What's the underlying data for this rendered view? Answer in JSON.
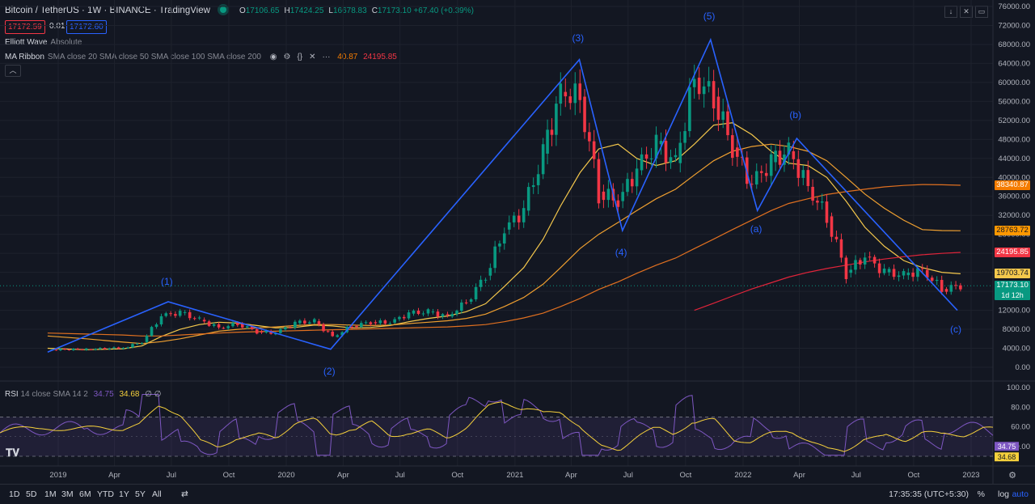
{
  "header": {
    "symbol_title": "Bitcoin / TetherUS · 1W · BINANCE · TradingView",
    "ohlc": {
      "o_label": "O",
      "o": "17106.65",
      "h_label": "H",
      "h": "17424.25",
      "l_label": "L",
      "l": "16678.83",
      "c_label": "C",
      "c": "17173.10",
      "change": "+67.40 (+0.39%)"
    },
    "bid": "17172.59",
    "spread": "0.01",
    "ask": "17172.60",
    "indicator_1": {
      "name": "Elliott Wave",
      "params": "Absolute"
    },
    "indicator_2": {
      "name": "MA Ribbon",
      "params": "SMA close 20 SMA close 50 SMA close 100 SMA close 200",
      "v1": "40.87",
      "v2": "24195.85"
    },
    "more_icon": "···",
    "collapse_icon": "chevron-up-icon",
    "window_icons": [
      "down-arrow-icon",
      "collapse-icon",
      "maximize-icon"
    ]
  },
  "rsi": {
    "name": "RSI",
    "params": "14 close SMA 14 2",
    "v1": "34.75",
    "v2": "34.68",
    "v3": "∅ ∅"
  },
  "bottom": {
    "timeframes": [
      "1D",
      "5D",
      "1M",
      "3M",
      "6M",
      "YTD",
      "1Y",
      "5Y",
      "All"
    ],
    "time": "17:35:35 (UTC+5:30)",
    "percent": "%",
    "log": "log",
    "auto": "auto"
  },
  "colors": {
    "bg": "#131722",
    "up": "#089981",
    "down": "#f23645",
    "wave": "#2962ff",
    "ma20": "#f5c84c",
    "ma50": "#f0a030",
    "ma100": "#e07020",
    "ma200": "#e0243a",
    "rsi": "#7e57c2",
    "rsi_ma": "#f5d03c"
  },
  "chart_data": {
    "type": "line",
    "title": "Bitcoin / TetherUS · 1W · BINANCE",
    "y_ticks": [
      "76000.00",
      "72000.00",
      "68000.00",
      "64000.00",
      "60000.00",
      "56000.00",
      "52000.00",
      "48000.00",
      "44000.00",
      "40000.00",
      "36000.00",
      "32000.00",
      "28000.00",
      "24000.00",
      "20000.00",
      "16000.00",
      "12000.00",
      "8000.00",
      "4000.00",
      "0.00"
    ],
    "ylim": [
      0,
      76000
    ],
    "x_ticks": [
      "2019",
      "Apr",
      "Jul",
      "Oct",
      "2020",
      "Apr",
      "Jul",
      "Oct",
      "2021",
      "Apr",
      "Jul",
      "Oct",
      "2022",
      "Apr",
      "Jul",
      "Oct",
      "2023"
    ],
    "price_tags": [
      {
        "label": "38340.87",
        "value": 38340.87,
        "color": "#f57c00"
      },
      {
        "label": "28763.72",
        "value": 28763.72,
        "color": "#ff9800"
      },
      {
        "label": "24195.85",
        "value": 24195.85,
        "color": "#f23645"
      },
      {
        "label": "19703.74",
        "value": 19703.74,
        "color": "#f5c84c"
      },
      {
        "label": "17173.10",
        "sub": "1d 12h",
        "value": 17173.1,
        "color": "#089981"
      }
    ],
    "elliott_wave": {
      "points": [
        {
          "label": "",
          "x": "2018-12-15",
          "y": 3200
        },
        {
          "label": "(1)",
          "x": "2019-06-26",
          "y": 13800
        },
        {
          "label": "(2)",
          "x": "2020-03-12",
          "y": 3800
        },
        {
          "label": "(3)",
          "x": "2021-04-14",
          "y": 64800
        },
        {
          "label": "(4)",
          "x": "2021-06-22",
          "y": 28800
        },
        {
          "label": "(5)",
          "x": "2021-11-10",
          "y": 69000
        },
        {
          "label": "(a)",
          "x": "2022-01-24",
          "y": 33000
        },
        {
          "label": "(b)",
          "x": "2022-03-28",
          "y": 48200
        },
        {
          "label": "(c)",
          "x": "2022-12-10",
          "y": 12000
        }
      ]
    },
    "series": [
      {
        "name": "BTCUSDT close",
        "x": [
          "2018-12",
          "2019-02",
          "2019-04",
          "2019-05",
          "2019-06",
          "2019-07",
          "2019-08",
          "2019-09",
          "2019-10",
          "2019-11",
          "2019-12",
          "2020-01",
          "2020-02",
          "2020-03",
          "2020-04",
          "2020-05",
          "2020-06",
          "2020-07",
          "2020-08",
          "2020-09",
          "2020-10",
          "2020-11",
          "2020-12",
          "2021-01",
          "2021-02",
          "2021-03",
          "2021-04",
          "2021-05",
          "2021-06",
          "2021-07",
          "2021-08",
          "2021-09",
          "2021-10",
          "2021-11",
          "2021-12",
          "2022-01",
          "2022-02",
          "2022-03",
          "2022-04",
          "2022-05",
          "2022-06",
          "2022-07",
          "2022-08",
          "2022-09",
          "2022-10",
          "2022-11",
          "2022-12"
        ],
        "values": [
          3700,
          3800,
          4100,
          5300,
          10800,
          11500,
          10000,
          8300,
          9200,
          7500,
          7200,
          9300,
          9700,
          6400,
          8700,
          9500,
          9400,
          11300,
          11700,
          10700,
          13800,
          19300,
          29000,
          33000,
          45000,
          58000,
          57000,
          37000,
          35000,
          41500,
          47000,
          43000,
          61000,
          57000,
          46300,
          38500,
          43200,
          45500,
          38000,
          31800,
          19900,
          23300,
          20000,
          19400,
          20500,
          16500,
          17173
        ]
      },
      {
        "name": "SMA 20",
        "values": [
          4000,
          3700,
          3900,
          4500,
          6500,
          8000,
          9000,
          9500,
          9300,
          8800,
          8300,
          8400,
          8900,
          8700,
          8300,
          8400,
          8800,
          9600,
          10300,
          10800,
          11700,
          13400,
          17000,
          21000,
          27000,
          34000,
          41000,
          46000,
          47000,
          44000,
          42500,
          43500,
          47000,
          51000,
          51500,
          49000,
          45500,
          43000,
          42500,
          40000,
          35000,
          29500,
          25500,
          22500,
          21000,
          20000,
          19704
        ]
      },
      {
        "name": "SMA 50",
        "values": [
          6600,
          6000,
          5300,
          5000,
          5400,
          6000,
          6800,
          7600,
          8000,
          8300,
          8500,
          8800,
          9000,
          9000,
          8900,
          8800,
          8900,
          9200,
          9500,
          9800,
          10300,
          11200,
          12800,
          14700,
          17500,
          21000,
          25000,
          28000,
          30500,
          33000,
          35500,
          37500,
          40500,
          43500,
          45500,
          46500,
          47000,
          46500,
          45500,
          43500,
          40000,
          36500,
          33500,
          31000,
          29000,
          28800,
          28764
        ]
      },
      {
        "name": "SMA 100",
        "values": [
          7200,
          7000,
          6800,
          6600,
          6600,
          6800,
          7000,
          7200,
          7400,
          7500,
          7600,
          7700,
          7800,
          7900,
          8000,
          8100,
          8200,
          8300,
          8400,
          8500,
          8700,
          9000,
          9600,
          10400,
          11400,
          12800,
          14500,
          16400,
          18000,
          19800,
          21500,
          23000,
          25000,
          27000,
          29000,
          31000,
          33000,
          34500,
          35500,
          36400,
          37000,
          37500,
          38000,
          38300,
          38500,
          38450,
          38341
        ]
      },
      {
        "name": "SMA 200",
        "values": [
          null,
          null,
          null,
          null,
          null,
          null,
          null,
          null,
          null,
          null,
          null,
          null,
          null,
          null,
          null,
          null,
          null,
          null,
          null,
          null,
          null,
          null,
          null,
          null,
          null,
          null,
          null,
          null,
          null,
          null,
          null,
          null,
          12000,
          13500,
          15000,
          16500,
          17800,
          19000,
          20000,
          20800,
          21500,
          22200,
          22800,
          23300,
          23700,
          24000,
          24196
        ]
      }
    ],
    "rsi": {
      "y_ticks": [
        "100.00",
        "80.00",
        "60.00",
        "40.00"
      ],
      "ylim": [
        30,
        100
      ],
      "bands": [
        70,
        30
      ],
      "last_rsi": "34.75",
      "last_ma": "34.68"
    }
  }
}
